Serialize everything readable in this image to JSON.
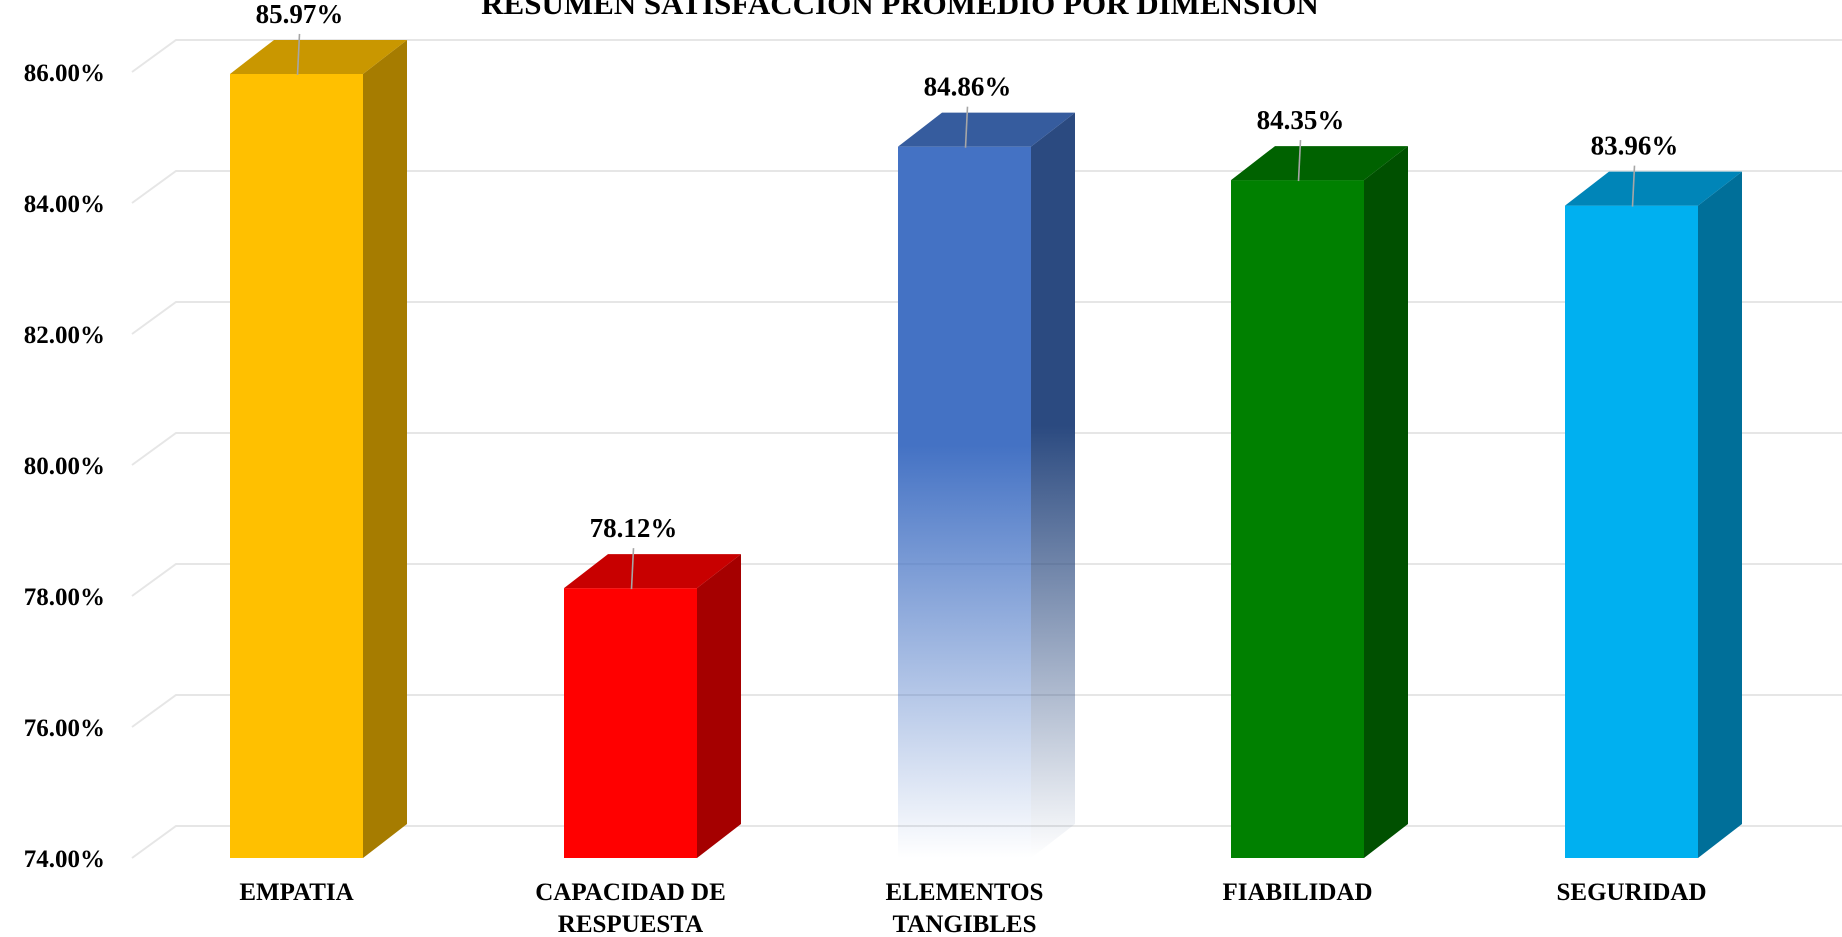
{
  "chart_data": {
    "type": "bar",
    "title": "RESUMEN SATISFACCION PROMEDIO POR DIMENSION",
    "categories": [
      "EMPATIA",
      "CAPACIDAD DE RESPUESTA",
      "ELEMENTOS TANGIBLES",
      "FIABILIDAD",
      "SEGURIDAD"
    ],
    "category_lines": [
      [
        "EMPATIA"
      ],
      [
        "CAPACIDAD DE",
        "RESPUESTA"
      ],
      [
        "ELEMENTOS",
        "TANGIBLES"
      ],
      [
        "FIABILIDAD"
      ],
      [
        "SEGURIDAD"
      ]
    ],
    "values": [
      85.97,
      78.12,
      84.86,
      84.35,
      83.96
    ],
    "value_labels": [
      "85.97%",
      "78.12%",
      "84.86%",
      "84.35%",
      "83.96%"
    ],
    "ylim": [
      74,
      86
    ],
    "yticks": [
      74,
      76,
      78,
      80,
      82,
      84,
      86
    ],
    "ytick_labels": [
      "74.00%",
      "76.00%",
      "78.00%",
      "80.00%",
      "82.00%",
      "84.00%",
      "86.00%"
    ],
    "xlabel": "",
    "ylabel": "",
    "grid": true,
    "style": "3d-columns",
    "colors": {
      "front": [
        "#FFC000",
        "#FF0000",
        "#4472C4",
        "#008000",
        "#00B0F0"
      ],
      "side": [
        "#A67C00",
        "#A50000",
        "#2B4A80",
        "#005000",
        "#006F99"
      ],
      "top": [
        "#C99700",
        "#C80000",
        "#365C9E",
        "#006200",
        "#0085B8"
      ]
    },
    "gradient_fade_bars": [
      2
    ]
  }
}
